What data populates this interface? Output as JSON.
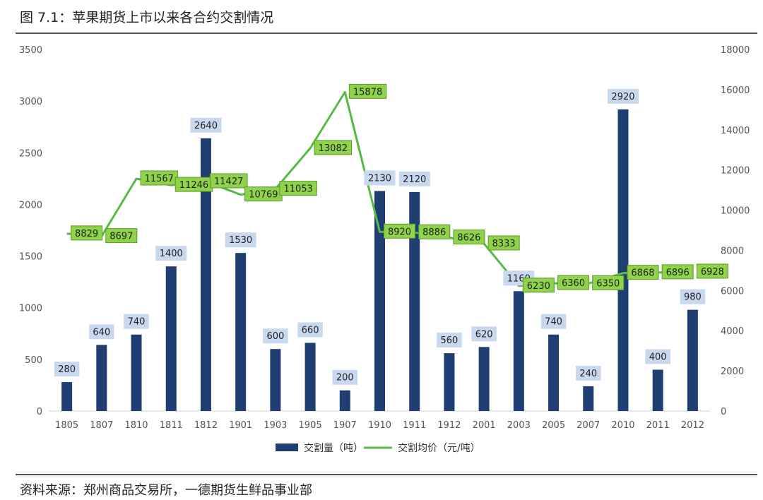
{
  "header": {
    "title": "图 7.1：苹果期货上市以来各合约交割情况"
  },
  "footer": {
    "source": "资料来源：郑州商品交易所，一德期货生鲜品事业部"
  },
  "colors": {
    "bar": "#1f3f73",
    "line": "#55bb44",
    "bar_label_bg": "#c8d8ee",
    "price_label_bg": "#8fd34a",
    "price_label_border": "#5a9a2a"
  },
  "chart_data": {
    "type": "bar",
    "categories": [
      "1805",
      "1807",
      "1810",
      "1811",
      "1812",
      "1901",
      "1903",
      "1905",
      "1907",
      "1910",
      "1911",
      "1912",
      "2001",
      "2003",
      "2005",
      "2007",
      "2010",
      "2011",
      "2012"
    ],
    "series": [
      {
        "name": "交割量（吨）",
        "type": "bar",
        "axis": "left",
        "values": [
          280,
          640,
          740,
          1400,
          2640,
          1530,
          600,
          660,
          200,
          2130,
          2120,
          560,
          620,
          1160,
          740,
          240,
          2920,
          400,
          980
        ]
      },
      {
        "name": "交割均价（元/吨）",
        "type": "line",
        "axis": "right",
        "values": [
          8829,
          8697,
          11567,
          11246,
          11427,
          10769,
          11053,
          13082,
          15878,
          8920,
          8886,
          8626,
          8333,
          6230,
          6360,
          6350,
          6868,
          6896,
          6928
        ]
      }
    ],
    "y_left": {
      "min": 0,
      "max": 3500,
      "ticks": [
        0,
        500,
        1000,
        1500,
        2000,
        2500,
        3000,
        3500
      ]
    },
    "y_right": {
      "min": 0,
      "max": 18000,
      "ticks": [
        0,
        2000,
        4000,
        6000,
        8000,
        10000,
        12000,
        14000,
        16000,
        18000
      ]
    },
    "grid": false,
    "legend_position": "bottom"
  }
}
